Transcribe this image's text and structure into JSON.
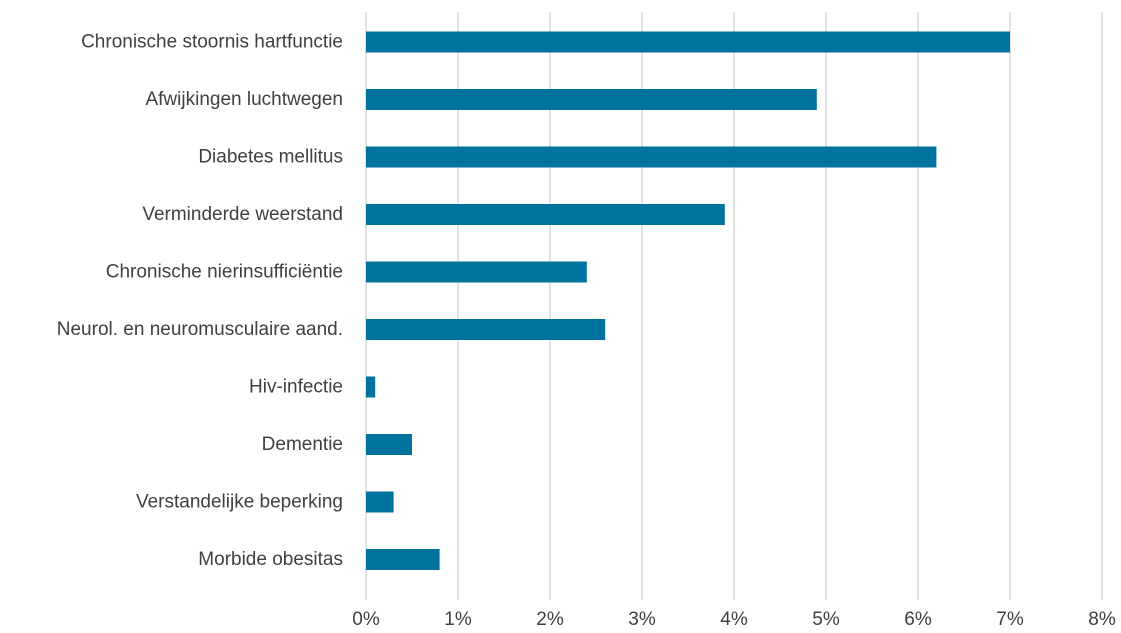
{
  "chart_data": {
    "type": "bar",
    "orientation": "horizontal",
    "categories": [
      "Chronische stoornis hartfunctie",
      "Afwijkingen luchtwegen",
      "Diabetes mellitus",
      "Verminderde weerstand",
      "Chronische nierinsufficiëntie",
      "Neurol. en neuromusculaire aand.",
      "Hiv-infectie",
      "Dementie",
      "Verstandelijke beperking",
      "Morbide obesitas"
    ],
    "values": [
      7.0,
      4.9,
      6.2,
      3.9,
      2.4,
      2.6,
      0.1,
      0.5,
      0.3,
      0.8
    ],
    "value_unit": "%",
    "xlim": [
      0,
      8
    ],
    "x_ticks": [
      "0%",
      "1%",
      "2%",
      "3%",
      "4%",
      "5%",
      "6%",
      "7%",
      "8%"
    ],
    "title": "",
    "xlabel": "",
    "ylabel": "",
    "grid": "vertical",
    "legend": "none",
    "bar_color": "#00729e",
    "grid_color": "#d9d9d9",
    "text_color": "#404040"
  }
}
